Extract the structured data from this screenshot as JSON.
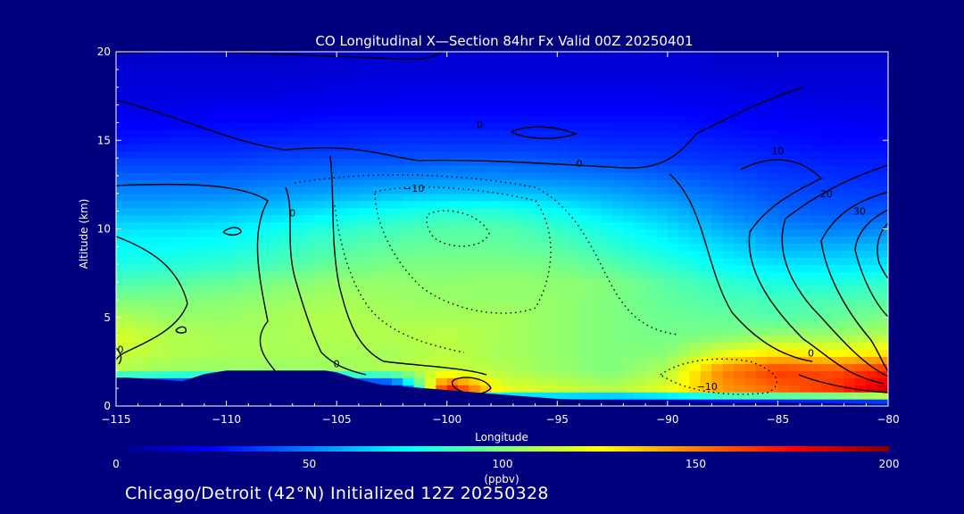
{
  "chart_data": {
    "type": "heatmap",
    "title": "CO Longitudinal X—Section 84hr  Fx Valid 00Z 20250401",
    "xlabel": "Longitude",
    "ylabel": "Altitude (km)",
    "xlim": [
      -115,
      -80
    ],
    "ylim": [
      0,
      20
    ],
    "x_ticks": [
      -115,
      -110,
      -105,
      -100,
      -95,
      -90,
      -85,
      -80
    ],
    "y_ticks": [
      0,
      5,
      10,
      15,
      20
    ],
    "colorbar": {
      "min": 0,
      "max": 200,
      "ticks": [
        0,
        50,
        100,
        150,
        200
      ],
      "unit": "(ppbv)",
      "colors": [
        "#00007f",
        "#0000ff",
        "#007fff",
        "#00ffff",
        "#7fff7f",
        "#ffff00",
        "#ff7f00",
        "#ff0000",
        "#7f0000"
      ]
    },
    "co_field": {
      "description_of_grid": "CO mixing ratio (ppbv) on longitude x altitude grid",
      "lon": [
        -115,
        -112.5,
        -110,
        -107.5,
        -105,
        -102.5,
        -100,
        -97.5,
        -95,
        -92.5,
        -90,
        -87.5,
        -85,
        -82.5,
        -80
      ],
      "alt": [
        0,
        1,
        2,
        3,
        4,
        5,
        6,
        7,
        8,
        9,
        10,
        11,
        12,
        13,
        14,
        15,
        16,
        17,
        18,
        19,
        20
      ],
      "values": [
        [
          0,
          0,
          0,
          0,
          0,
          0,
          0,
          0,
          0,
          0,
          0,
          0,
          0,
          0,
          0
        ],
        [
          0,
          0,
          0,
          0,
          0,
          0,
          175,
          120,
          115,
          110,
          120,
          145,
          155,
          165,
          185
        ],
        [
          110,
          105,
          105,
          105,
          105,
          110,
          115,
          110,
          105,
          100,
          110,
          150,
          165,
          160,
          170
        ],
        [
          115,
          110,
          108,
          108,
          108,
          108,
          112,
          108,
          104,
          100,
          102,
          120,
          130,
          125,
          130
        ],
        [
          118,
          110,
          108,
          108,
          110,
          110,
          112,
          108,
          104,
          100,
          98,
          100,
          105,
          105,
          110
        ],
        [
          110,
          105,
          105,
          108,
          110,
          108,
          108,
          108,
          104,
          100,
          96,
          95,
          92,
          95,
          100
        ],
        [
          100,
          100,
          102,
          105,
          108,
          106,
          105,
          104,
          104,
          100,
          94,
          90,
          88,
          90,
          92
        ],
        [
          90,
          92,
          95,
          100,
          104,
          104,
          103,
          104,
          103,
          100,
          92,
          85,
          80,
          80,
          85
        ],
        [
          80,
          82,
          85,
          90,
          96,
          99,
          100,
          100,
          98,
          92,
          84,
          75,
          70,
          70,
          70
        ],
        [
          75,
          76,
          78,
          84,
          90,
          94,
          95,
          95,
          92,
          84,
          76,
          68,
          60,
          60,
          62
        ],
        [
          70,
          70,
          72,
          78,
          84,
          88,
          92,
          92,
          86,
          78,
          70,
          60,
          52,
          50,
          52
        ],
        [
          60,
          60,
          62,
          66,
          72,
          78,
          82,
          82,
          76,
          68,
          62,
          52,
          46,
          42,
          42
        ],
        [
          52,
          52,
          52,
          55,
          58,
          62,
          64,
          64,
          62,
          58,
          52,
          46,
          40,
          38,
          36
        ],
        [
          44,
          44,
          44,
          46,
          48,
          50,
          52,
          52,
          50,
          48,
          44,
          40,
          36,
          34,
          32
        ],
        [
          36,
          36,
          36,
          38,
          40,
          40,
          42,
          42,
          40,
          38,
          36,
          34,
          32,
          30,
          30
        ],
        [
          28,
          30,
          30,
          32,
          32,
          34,
          34,
          34,
          34,
          32,
          32,
          30,
          28,
          26,
          26
        ],
        [
          24,
          24,
          26,
          26,
          28,
          28,
          28,
          28,
          28,
          28,
          28,
          26,
          24,
          24,
          22
        ],
        [
          20,
          20,
          22,
          22,
          22,
          24,
          24,
          24,
          24,
          24,
          24,
          22,
          22,
          20,
          20
        ],
        [
          18,
          18,
          18,
          18,
          20,
          20,
          20,
          20,
          20,
          20,
          20,
          20,
          18,
          18,
          18
        ],
        [
          16,
          16,
          16,
          16,
          16,
          18,
          18,
          18,
          18,
          18,
          18,
          16,
          16,
          16,
          16
        ],
        [
          14,
          14,
          14,
          14,
          16,
          16,
          16,
          16,
          16,
          16,
          16,
          14,
          14,
          14,
          14
        ]
      ]
    },
    "terrain_km": {
      "lon": [
        -115,
        -114.5,
        -113,
        -112,
        -111,
        -110,
        -108,
        -106,
        -105.5,
        -105,
        -104,
        -103,
        -101,
        -99,
        -97,
        -95,
        -92,
        -90,
        -87,
        -85,
        -82,
        -80
      ],
      "alt": [
        1.6,
        1.6,
        1.5,
        1.4,
        1.8,
        2.0,
        2.0,
        2.0,
        2.0,
        1.9,
        1.5,
        1.2,
        1.0,
        0.8,
        0.6,
        0.4,
        0.3,
        0.3,
        0.2,
        0.2,
        0.15,
        0.1
      ]
    },
    "contour_labels": [
      {
        "text": "0",
        "lon": -98.5,
        "alt": 15.7
      },
      {
        "text": "0",
        "lon": -94.0,
        "alt": 13.5
      },
      {
        "text": "0",
        "lon": -107.0,
        "alt": 10.7
      },
      {
        "text": "−10",
        "lon": -101.5,
        "alt": 12.1
      },
      {
        "text": "10",
        "lon": -85.0,
        "alt": 14.2
      },
      {
        "text": "20",
        "lon": -82.8,
        "alt": 11.8
      },
      {
        "text": "30",
        "lon": -81.3,
        "alt": 10.8
      },
      {
        "text": "0",
        "lon": -83.5,
        "alt": 2.8
      },
      {
        "text": "−10",
        "lon": -88.2,
        "alt": 0.9
      },
      {
        "text": "0",
        "lon": -105.0,
        "alt": 2.2
      },
      {
        "text": "0",
        "lon": -114.8,
        "alt": 3.0
      }
    ]
  },
  "footer": "Chicago/Detroit (42°N) Initialized 12Z 20250328"
}
